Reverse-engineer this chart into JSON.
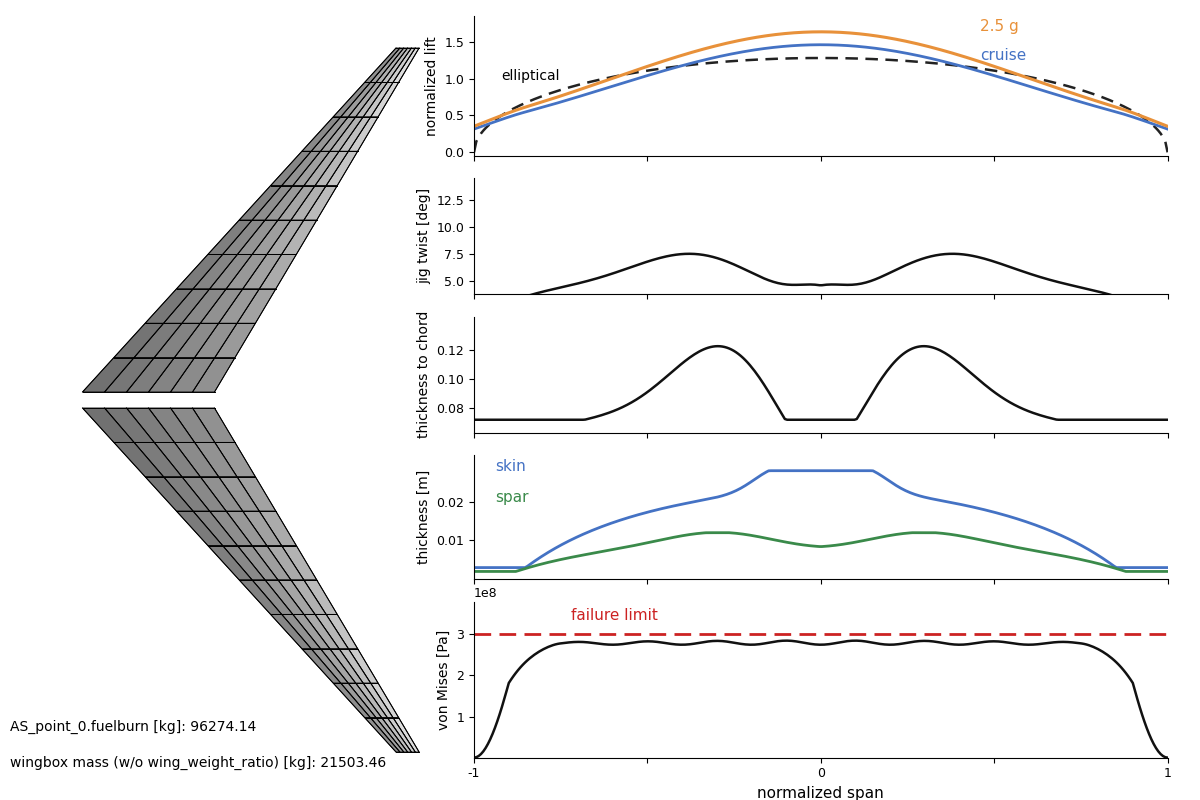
{
  "fuelburn": "AS_point_0.fuelburn [kg]: 96274.14",
  "wingbox_mass": "wingbox mass (w/o wing_weight_ratio) [kg]: 21503.46",
  "lift_ylabel": "normalized lift",
  "lift_elliptical_label": "elliptical",
  "lift_25g_label": "2.5 g",
  "lift_cruise_label": "cruise",
  "twist_ylabel": "jig twist [deg]",
  "tc_ylabel": "thickness to chord",
  "thickness_ylabel": "thickness [m]",
  "thickness_skin_label": "skin",
  "thickness_spar_label": "spar",
  "vonmises_ylabel": "von Mises [Pa]",
  "vonmises_failure_label": "failure limit",
  "xlabel": "normalized span",
  "color_25g": "#e8913a",
  "color_cruise": "#4472c4",
  "color_elliptical": "#222222",
  "color_twist": "#111111",
  "color_tc": "#111111",
  "color_skin": "#4472c4",
  "color_spar": "#3a8a4a",
  "color_vonmises": "#111111",
  "color_failure": "#cc2222",
  "n_span": 10,
  "n_chord": 6
}
